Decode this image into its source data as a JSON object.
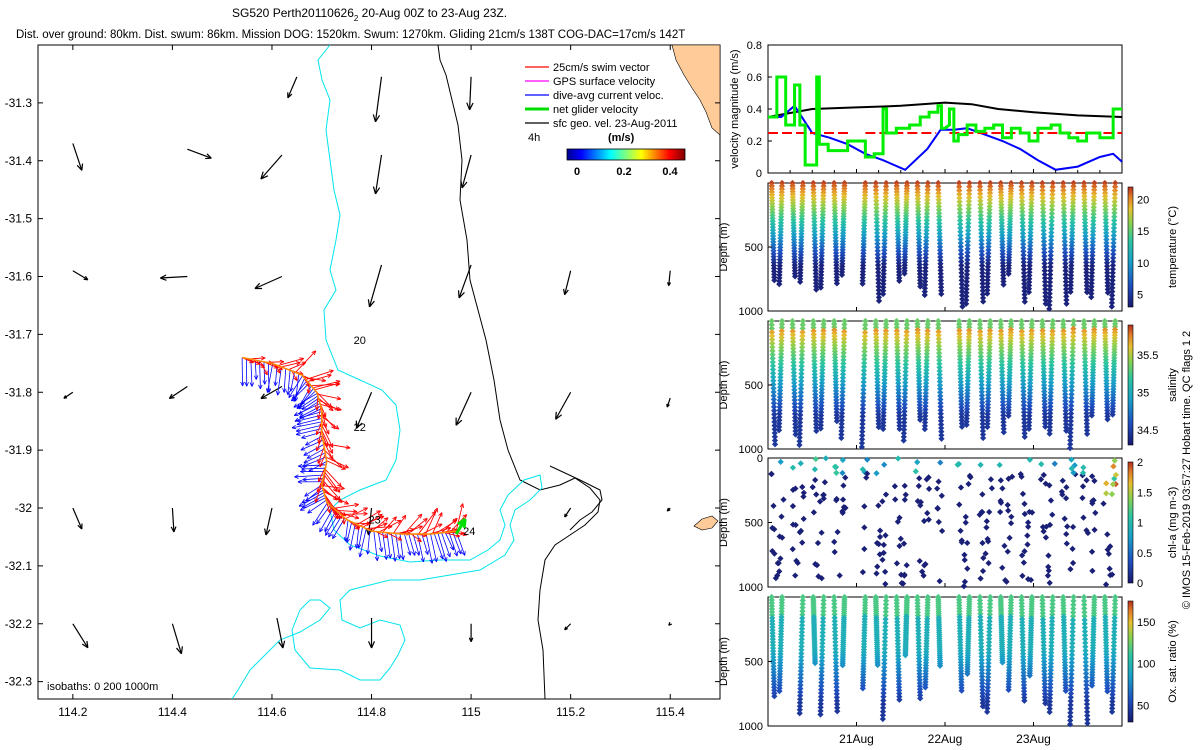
{
  "header": {
    "line1": "SG520 Perth20110626",
    "line1_sub": "2",
    "line1_tail": " 20-Aug 00Z to 23-Aug 23Z.",
    "line2": "Dist. over ground: 80km. Dist. swum: 86km. Mission DOG: 1520km. Swum: 1270km. Gliding 21cm/s 138T COG-DAC=17cm/s 142T"
  },
  "side_note": "© IMOS 15-Feb-2019 03:57:27 Hobart time. QC flags 1  2",
  "colors": {
    "swim": "#ff0000",
    "gps": "#ff00ff",
    "dac": "#0000ff",
    "net": "#00dd00",
    "sfc": "#000000",
    "iso0": "#000000",
    "iso200": "#00e5ee",
    "iso1000": "#000000",
    "land": "#ffcc99",
    "speed_mean": "#000000",
    "speed_ref": "#ff0000"
  },
  "chart_data": [
    {
      "type": "map",
      "xlim": [
        114.13,
        115.5
      ],
      "ylim": [
        -32.33,
        -31.2
      ],
      "x_ticks": [
        "114.2",
        "114.4",
        "114.6",
        "114.8",
        "115",
        "115.2",
        "115.4"
      ],
      "x_tick_values": [
        114.2,
        114.4,
        114.6,
        114.8,
        115.0,
        115.2,
        115.4
      ],
      "y_ticks": [
        "-31.3",
        "-31.4",
        "-31.5",
        "-31.6",
        "-31.7",
        "-31.8",
        "-31.9",
        "-32",
        "-32.1",
        "-32.2",
        "-32.3"
      ],
      "y_tick_values": [
        -31.3,
        -31.4,
        -31.5,
        -31.6,
        -31.7,
        -31.8,
        -31.9,
        -32.0,
        -32.1,
        -32.2,
        -32.3
      ],
      "legend": [
        {
          "label": "25cm/s swim vector",
          "color": "#ff0000"
        },
        {
          "label": "GPS surface velocity",
          "color": "#ff00ff"
        },
        {
          "label": "dive-avg current veloc.",
          "color": "#0000ff"
        },
        {
          "label": "net glider velocity",
          "color": "#00dd00"
        },
        {
          "label": "sfc geo. vel. 23-Aug-2011",
          "color": "#000000"
        }
      ],
      "legend_note": "4h",
      "colorbar": {
        "label": "(m/s)",
        "ticks": [
          "0",
          "0.2",
          "0.4"
        ],
        "tick_values": [
          0,
          0.2,
          0.4
        ],
        "range": [
          0,
          0.5
        ]
      },
      "isobaths_label": "isobaths: 0   200   1000m",
      "track_labels": [
        {
          "text": "20",
          "lon": 114.76,
          "lat": -31.71
        },
        {
          "text": "22",
          "lon": 114.76,
          "lat": -31.86
        },
        {
          "text": "23",
          "lon": 114.79,
          "lat": -32.02
        },
        {
          "text": "24",
          "lon": 114.98,
          "lat": -32.04
        }
      ],
      "track": [
        [
          114.54,
          -31.74
        ],
        [
          114.6,
          -31.75
        ],
        [
          114.66,
          -31.77
        ],
        [
          114.69,
          -31.8
        ],
        [
          114.7,
          -31.83
        ],
        [
          114.7,
          -31.87
        ],
        [
          114.71,
          -31.92
        ],
        [
          114.7,
          -31.96
        ],
        [
          114.71,
          -31.99
        ],
        [
          114.75,
          -32.02
        ],
        [
          114.8,
          -32.04
        ],
        [
          114.86,
          -32.045
        ],
        [
          114.92,
          -32.045
        ],
        [
          114.97,
          -32.04
        ]
      ],
      "sfc_vectors": [
        {
          "lon": 114.65,
          "lat": -31.255,
          "u": -0.03,
          "v": -0.07
        },
        {
          "lon": 114.82,
          "lat": -31.255,
          "u": -0.02,
          "v": -0.15
        },
        {
          "lon": 115.0,
          "lat": -31.255,
          "u": -0.005,
          "v": -0.11
        },
        {
          "lon": 114.2,
          "lat": -31.37,
          "u": 0.03,
          "v": -0.09
        },
        {
          "lon": 114.43,
          "lat": -31.38,
          "u": 0.08,
          "v": -0.03
        },
        {
          "lon": 114.62,
          "lat": -31.39,
          "u": -0.07,
          "v": -0.08
        },
        {
          "lon": 114.82,
          "lat": -31.39,
          "u": -0.02,
          "v": -0.13
        },
        {
          "lon": 115.0,
          "lat": -31.39,
          "u": -0.03,
          "v": -0.11
        },
        {
          "lon": 114.2,
          "lat": -31.59,
          "u": 0.05,
          "v": -0.03
        },
        {
          "lon": 114.43,
          "lat": -31.6,
          "u": -0.09,
          "v": -0.005
        },
        {
          "lon": 114.62,
          "lat": -31.6,
          "u": -0.09,
          "v": -0.04
        },
        {
          "lon": 114.82,
          "lat": -31.58,
          "u": -0.04,
          "v": -0.14
        },
        {
          "lon": 115.0,
          "lat": -31.58,
          "u": -0.04,
          "v": -0.11
        },
        {
          "lon": 115.2,
          "lat": -31.59,
          "u": -0.02,
          "v": -0.08
        },
        {
          "lon": 115.4,
          "lat": -31.59,
          "u": -0.005,
          "v": -0.05
        },
        {
          "lon": 114.2,
          "lat": -31.8,
          "u": -0.03,
          "v": -0.02
        },
        {
          "lon": 114.43,
          "lat": -31.79,
          "u": -0.06,
          "v": -0.04
        },
        {
          "lon": 114.62,
          "lat": -31.79,
          "u": -0.07,
          "v": -0.04
        },
        {
          "lon": 114.8,
          "lat": -31.8,
          "u": -0.05,
          "v": -0.12
        },
        {
          "lon": 115.0,
          "lat": -31.8,
          "u": -0.05,
          "v": -0.11
        },
        {
          "lon": 115.2,
          "lat": -31.8,
          "u": -0.05,
          "v": -0.09
        },
        {
          "lon": 115.4,
          "lat": -31.81,
          "u": -0.01,
          "v": -0.03
        },
        {
          "lon": 114.2,
          "lat": -32.0,
          "u": 0.03,
          "v": -0.07
        },
        {
          "lon": 114.4,
          "lat": -32.0,
          "u": 0.005,
          "v": -0.08
        },
        {
          "lon": 114.6,
          "lat": -32.0,
          "u": -0.02,
          "v": -0.09
        },
        {
          "lon": 114.8,
          "lat": -32.0,
          "u": -0.01,
          "v": -0.09
        },
        {
          "lon": 115.2,
          "lat": -32.0,
          "u": -0.02,
          "v": -0.03
        },
        {
          "lon": 115.4,
          "lat": -32.0,
          "u": -0.01,
          "v": -0.01
        },
        {
          "lon": 114.2,
          "lat": -32.2,
          "u": 0.05,
          "v": -0.08
        },
        {
          "lon": 114.4,
          "lat": -32.2,
          "u": 0.03,
          "v": -0.1
        },
        {
          "lon": 114.61,
          "lat": -32.19,
          "u": 0.02,
          "v": -0.1
        },
        {
          "lon": 114.8,
          "lat": -32.19,
          "u": 0.0,
          "v": -0.1
        },
        {
          "lon": 115.0,
          "lat": -32.2,
          "u": 0.0,
          "v": -0.06
        },
        {
          "lon": 115.2,
          "lat": -32.2,
          "u": -0.02,
          "v": -0.02
        },
        {
          "lon": 115.4,
          "lat": -32.2,
          "u": -0.005,
          "v": -0.005
        }
      ],
      "net_vector": {
        "lon": 114.97,
        "lat": -32.045,
        "u": 0.03,
        "v": 0.05
      }
    },
    {
      "type": "line",
      "ylabel": "velocity magnitude (m/s)",
      "ylim": [
        0,
        0.8
      ],
      "y_ticks": [
        "0",
        "0.2",
        "0.4",
        "0.6",
        "0.8"
      ],
      "xlim": [
        20.0,
        24.0
      ],
      "x_ticks": [
        "21Aug",
        "22Aug",
        "23Aug"
      ],
      "x_tick_values": [
        21.0,
        22.0,
        23.0
      ],
      "series": [
        {
          "color": "#000000",
          "x": [
            20.0,
            20.5,
            21.0,
            21.5,
            22.0,
            22.3,
            22.6,
            23.0,
            23.5,
            24.0
          ],
          "y": [
            0.35,
            0.4,
            0.41,
            0.42,
            0.44,
            0.43,
            0.4,
            0.38,
            0.36,
            0.35
          ]
        },
        {
          "color": "#0000ff",
          "x": [
            20.0,
            20.15,
            20.3,
            20.5,
            20.7,
            20.9,
            21.1,
            21.3,
            21.55,
            21.8,
            21.95,
            22.1,
            22.25,
            22.45,
            22.65,
            22.85,
            23.05,
            23.25,
            23.5,
            23.75,
            23.9,
            24.0
          ],
          "y": [
            0.35,
            0.35,
            0.42,
            0.25,
            0.22,
            0.18,
            0.12,
            0.08,
            0.02,
            0.15,
            0.27,
            0.27,
            0.28,
            0.24,
            0.2,
            0.15,
            0.08,
            0.02,
            0.04,
            0.1,
            0.12,
            0.07
          ]
        },
        {
          "color": "#ff0000",
          "dashed": true,
          "x": [
            20.0,
            20.95
          ],
          "y": [
            0.25,
            0.25
          ]
        },
        {
          "color": "#ff0000",
          "dashed": true,
          "x": [
            21.1,
            21.9
          ],
          "y": [
            0.25,
            0.25
          ]
        },
        {
          "color": "#ff0000",
          "dashed": true,
          "x": [
            22.05,
            24.0
          ],
          "y": [
            0.25,
            0.25
          ]
        }
      ],
      "green_steps": [
        [
          20.0,
          0.35
        ],
        [
          20.1,
          0.35
        ],
        [
          20.1,
          0.6
        ],
        [
          20.2,
          0.6
        ],
        [
          20.2,
          0.3
        ],
        [
          20.3,
          0.3
        ],
        [
          20.3,
          0.55
        ],
        [
          20.36,
          0.55
        ],
        [
          20.36,
          0.3
        ],
        [
          20.42,
          0.3
        ],
        [
          20.42,
          0.05
        ],
        [
          20.55,
          0.05
        ],
        [
          20.55,
          0.6
        ],
        [
          20.58,
          0.6
        ],
        [
          20.58,
          0.18
        ],
        [
          20.68,
          0.18
        ],
        [
          20.68,
          0.14
        ],
        [
          20.9,
          0.14
        ],
        [
          20.9,
          0.2
        ],
        [
          20.98,
          0.2
        ],
        [
          21.1,
          0.2
        ],
        [
          21.1,
          0.1
        ],
        [
          21.2,
          0.1
        ],
        [
          21.2,
          0.12
        ],
        [
          21.3,
          0.12
        ],
        [
          21.3,
          0.4
        ],
        [
          21.34,
          0.4
        ],
        [
          21.34,
          0.25
        ],
        [
          21.45,
          0.25
        ],
        [
          21.45,
          0.28
        ],
        [
          21.6,
          0.28
        ],
        [
          21.6,
          0.3
        ],
        [
          21.72,
          0.3
        ],
        [
          21.72,
          0.35
        ],
        [
          21.82,
          0.35
        ],
        [
          21.82,
          0.38
        ],
        [
          21.92,
          0.38
        ],
        [
          21.92,
          0.42
        ],
        [
          21.96,
          0.42
        ],
        [
          21.96,
          0.28
        ],
        [
          22.0,
          0.28
        ],
        [
          22.05,
          0.3
        ],
        [
          22.05,
          0.4
        ],
        [
          22.1,
          0.4
        ],
        [
          22.1,
          0.2
        ],
        [
          22.15,
          0.2
        ],
        [
          22.15,
          0.24
        ],
        [
          22.25,
          0.24
        ],
        [
          22.25,
          0.3
        ],
        [
          22.35,
          0.3
        ],
        [
          22.35,
          0.26
        ],
        [
          22.45,
          0.26
        ],
        [
          22.45,
          0.28
        ],
        [
          22.55,
          0.28
        ],
        [
          22.55,
          0.3
        ],
        [
          22.65,
          0.3
        ],
        [
          22.65,
          0.22
        ],
        [
          22.75,
          0.22
        ],
        [
          22.75,
          0.28
        ],
        [
          22.85,
          0.28
        ],
        [
          22.85,
          0.25
        ],
        [
          22.95,
          0.25
        ],
        [
          22.95,
          0.2
        ],
        [
          23.05,
          0.2
        ],
        [
          23.05,
          0.28
        ],
        [
          23.2,
          0.28
        ],
        [
          23.2,
          0.3
        ],
        [
          23.3,
          0.3
        ],
        [
          23.3,
          0.25
        ],
        [
          23.4,
          0.25
        ],
        [
          23.4,
          0.22
        ],
        [
          23.5,
          0.22
        ],
        [
          23.5,
          0.2
        ],
        [
          23.6,
          0.2
        ],
        [
          23.6,
          0.25
        ],
        [
          23.75,
          0.25
        ],
        [
          23.75,
          0.22
        ],
        [
          23.9,
          0.22
        ],
        [
          23.9,
          0.4
        ],
        [
          24.0,
          0.4
        ]
      ]
    },
    {
      "type": "scatter",
      "panels": [
        {
          "key": "temp",
          "ylabel": "Depth (m)",
          "cbar_label": "temperature (°C)",
          "cbar_ticks": [
            "5",
            "10",
            "15",
            "20"
          ],
          "cbar_tick_values": [
            5,
            10,
            15,
            20
          ],
          "cbar_range": [
            3,
            22
          ],
          "y_ticks": [
            "500",
            "1000"
          ],
          "profile": "temperature",
          "style": "dense"
        },
        {
          "key": "sal",
          "ylabel": "Depth (m)",
          "cbar_label": "salinity",
          "cbar_ticks": [
            "34.5",
            "35",
            "35.5"
          ],
          "cbar_tick_values": [
            34.5,
            35.0,
            35.5
          ],
          "cbar_range": [
            34.3,
            35.9
          ],
          "y_ticks": [
            "500",
            "1000"
          ],
          "profile": "salinity",
          "style": "dense"
        },
        {
          "key": "chl",
          "ylabel": "Depth (m)",
          "cbar_label": "chl-a (mg m-3)",
          "cbar_ticks": [
            "0",
            "0.5",
            "1",
            "1.5",
            "2"
          ],
          "cbar_tick_values": [
            0,
            0.5,
            1,
            1.5,
            2
          ],
          "cbar_range": [
            0,
            2
          ],
          "y_ticks": [
            "0",
            "500",
            "1000"
          ],
          "profile": "chl",
          "style": "sparse"
        },
        {
          "key": "oxy",
          "ylabel": "Depth (m)",
          "cbar_label": "Ox. sat. ratio (%)",
          "cbar_ticks": [
            "50",
            "100",
            "150"
          ],
          "cbar_tick_values": [
            50,
            100,
            150
          ],
          "cbar_range": [
            30,
            175
          ],
          "y_ticks": [
            "500",
            "1000"
          ],
          "profile": "oxy",
          "style": "oxy"
        }
      ],
      "ylim": [
        0,
        1000
      ],
      "xlim": [
        20.0,
        24.0
      ],
      "x_ticks": [
        "21Aug",
        "22Aug",
        "23Aug"
      ],
      "x_tick_values": [
        21.0,
        22.0,
        23.0
      ],
      "gaps": [
        [
          20.97,
          21.1
        ],
        [
          21.97,
          22.05
        ]
      ]
    }
  ]
}
